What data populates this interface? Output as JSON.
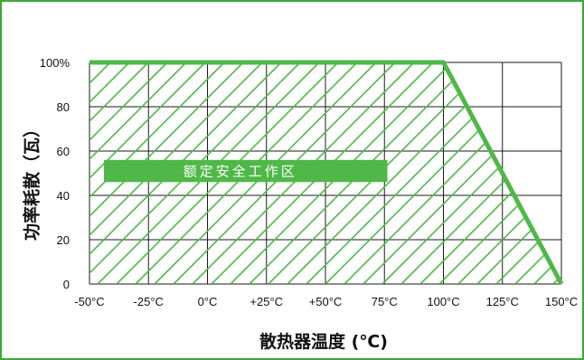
{
  "colors": {
    "border": "#3aa935",
    "curve": "#4fb848",
    "hatch": "#4fb848",
    "grid": "#1a1a1a",
    "label_box": "#4fb848"
  },
  "chart_data": {
    "type": "area",
    "title": "",
    "xlabel": "散热器温度 (℃)",
    "ylabel": "功率耗散（瓦）",
    "x": [
      -50,
      100,
      150
    ],
    "y": [
      100,
      100,
      0
    ],
    "xlim": [
      -50,
      150
    ],
    "ylim": [
      0,
      100
    ],
    "x_ticks": [
      -50,
      -25,
      0,
      25,
      50,
      75,
      100,
      125,
      150
    ],
    "x_tick_labels": [
      "-50°C",
      "-25°C",
      "0°C",
      "+25°C",
      "+50°C",
      "75°C",
      "100°C",
      "125°C",
      "150°C"
    ],
    "y_ticks": [
      0,
      20,
      40,
      60,
      80,
      100
    ],
    "y_tick_labels": [
      "0",
      "20",
      "40",
      "60",
      "80",
      "100%"
    ],
    "grid": true,
    "area_fill": "hatched",
    "annotation": {
      "text": "额定安全工作区",
      "x_range": [
        -50,
        100
      ],
      "y_range": [
        46,
        56
      ]
    }
  }
}
